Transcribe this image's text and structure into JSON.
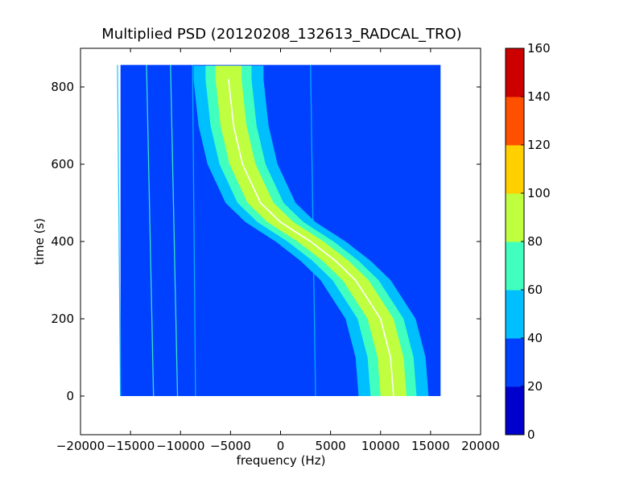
{
  "chart_data": {
    "type": "heatmap",
    "title": "Multiplied PSD (20120208_132613_RADCAL_TRO)",
    "xlabel": "frequency (Hz)",
    "ylabel": "time (s)",
    "xlim": [
      -20000,
      20000
    ],
    "ylim": [
      -100,
      900
    ],
    "x_ticks": [
      -20000,
      -15000,
      -10000,
      -5000,
      0,
      5000,
      10000,
      15000,
      20000
    ],
    "x_tick_labels": [
      "−20000",
      "−15000",
      "−10000",
      "−5000",
      "0",
      "5000",
      "10000",
      "15000",
      "20000"
    ],
    "y_ticks": [
      0,
      200,
      400,
      600,
      800
    ],
    "y_tick_labels": [
      "0",
      "200",
      "400",
      "600",
      "800"
    ],
    "data_extent": {
      "x": [
        -16000,
        16000
      ],
      "y": [
        0,
        857
      ]
    },
    "background_level": 30,
    "grid": false,
    "colorbar": {
      "levels": [
        0,
        20,
        40,
        60,
        80,
        100,
        120,
        140,
        160
      ],
      "labels": [
        "0",
        "20",
        "40",
        "60",
        "80",
        "100",
        "120",
        "140",
        "160"
      ],
      "colors": [
        "#0000cd",
        "#0040ff",
        "#00bfff",
        "#40ffbf",
        "#bfff40",
        "#ffcf00",
        "#ff5000",
        "#cd0000"
      ]
    },
    "trace": {
      "description": "Doppler S-curve of peak power",
      "points": [
        {
          "t": 0,
          "f": 11300
        },
        {
          "t": 100,
          "f": 11000
        },
        {
          "t": 200,
          "f": 10000
        },
        {
          "t": 300,
          "f": 7500
        },
        {
          "t": 350,
          "f": 5500
        },
        {
          "t": 400,
          "f": 3000
        },
        {
          "t": 450,
          "f": 0
        },
        {
          "t": 500,
          "f": -2000
        },
        {
          "t": 600,
          "f": -3800
        },
        {
          "t": 700,
          "f": -4700
        },
        {
          "t": 820,
          "f": -5200
        }
      ],
      "band_half_widths": [
        {
          "level": 40,
          "df": 3500
        },
        {
          "level": 60,
          "df": 2300
        },
        {
          "level": 80,
          "df": 1300
        }
      ],
      "peak_color": "#ffffff"
    },
    "vertical_lines": [
      {
        "f0": -16000,
        "f1": -16300,
        "color": "#00bfff"
      },
      {
        "f0": -12700,
        "f1": -13400,
        "color": "#40ffbf"
      },
      {
        "f0": -10300,
        "f1": -11000,
        "color": "#40ffbf"
      },
      {
        "f0": -8500,
        "f1": -8800,
        "color": "#00bfff"
      },
      {
        "f0": 3500,
        "f1": 3000,
        "color": "#00bfff"
      }
    ]
  }
}
